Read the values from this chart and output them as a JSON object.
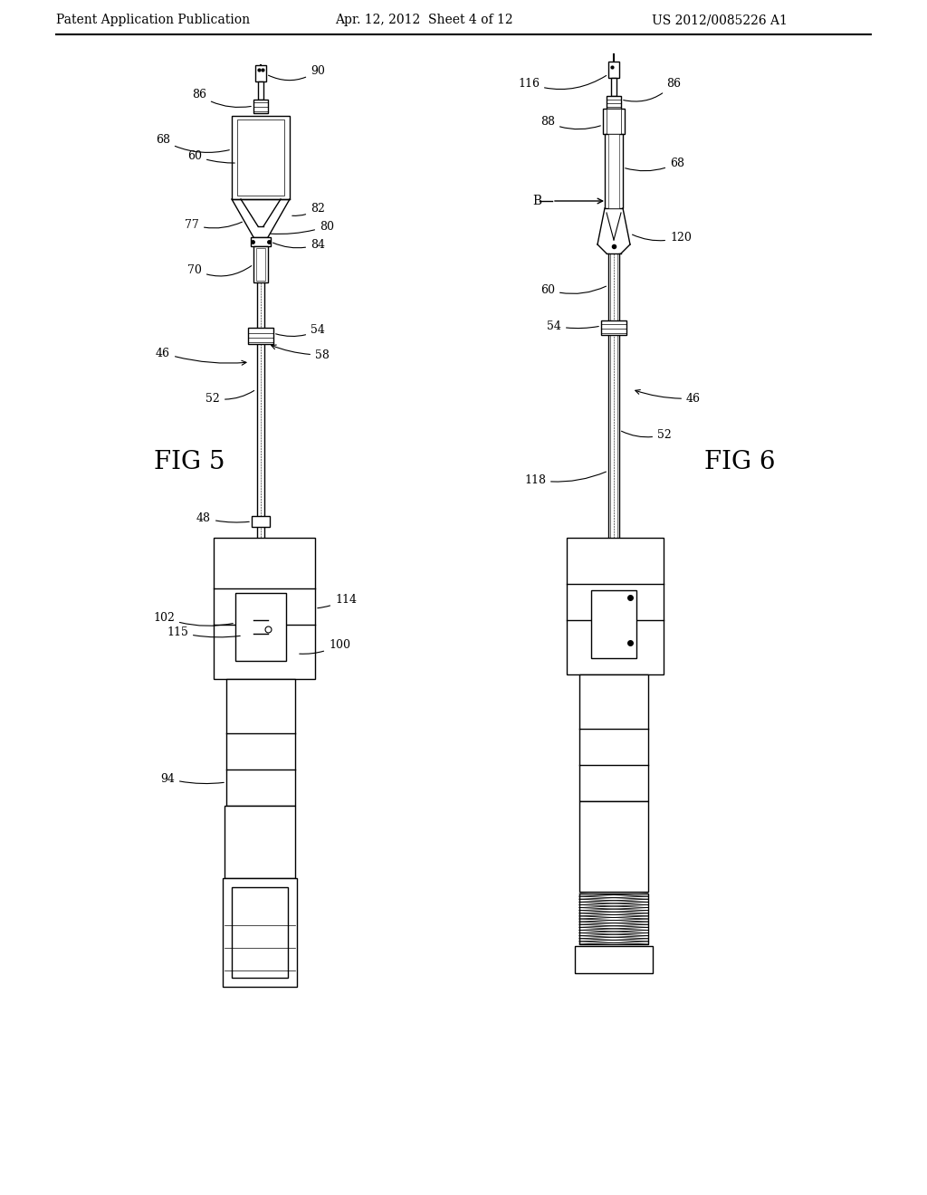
{
  "header_left": "Patent Application Publication",
  "header_center": "Apr. 12, 2012  Sheet 4 of 12",
  "header_right": "US 2012/0085226 A1",
  "fig5_label": "FIG 5",
  "fig6_label": "FIG 6",
  "background_color": "#ffffff",
  "line_color": "#000000"
}
